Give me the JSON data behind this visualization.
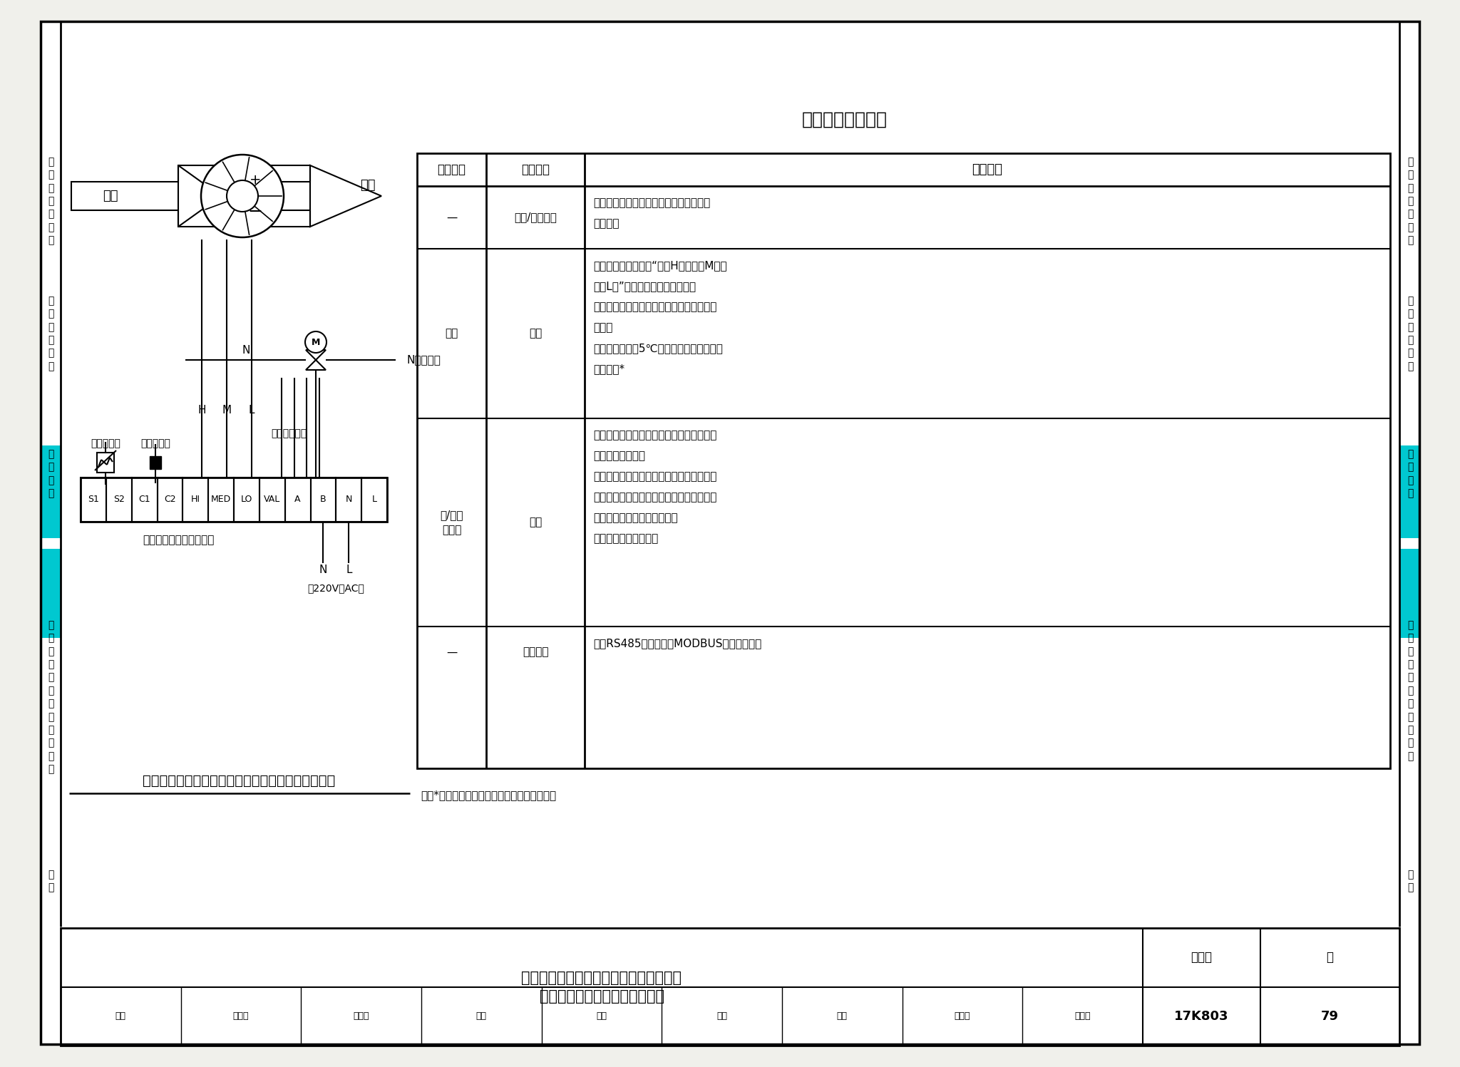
{
  "bg_color": "#f0f0eb",
  "page_bg": "#ffffff",
  "cyan_color": "#00c8d0",
  "title_right": "自控调节策略说明",
  "diagram_title": "冷热型联网（二管制）风机盘管温控面板接线示意图",
  "table_headers": [
    "被控设备",
    "被控内容",
    "控制要求"
  ],
  "row0_device": "—",
  "row0_content": "供冷/供热模式",
  "row0_req": [
    "接受人员的选择；供冷、供热、通风模式",
    "自动选择"
  ],
  "row1_device": "风机",
  "row1_content": "启停",
  "row1_req": [
    "根据人员的选择，按“高（H）、中（M）、",
    "低（L）”三档风速调节风机转速；",
    "或根据室内温度实测値与设定値的偏差自动",
    "换档；",
    "当室内温度低于5℃时，自动启动风机执行",
    "値班采暖*"
  ],
  "row2_device": "冷/热水\n电动阀",
  "row2_content": "通断",
  "row2_req": [
    "根据室内温度的实测値与设定値的偏差，对",
    "电动阀进行控制；",
    "供冷模式时，当室内温度实测値高于设定値",
    "时，电动阀开启；当室内温度实测値达到或",
    "低于设定値时，电动阀关闭；",
    "供热模式时，动作相反"
  ],
  "row3_device": "—",
  "row3_content": "联网功能",
  "row3_req": [
    "具有RS485联网控制（MODBUS等标准协议）"
  ],
  "note": "注：*部分产品有此功能，可以通过设置实现。",
  "footer_main_line1": "冷热型联网（二管制）风机盘管温控面板",
  "footer_main_line2": "接线示意图及自控调节策略说明",
  "footer_atlas_label": "图集号",
  "footer_atlas_num": "17K803",
  "footer_page_label": "页",
  "footer_page_num": "79",
  "audit_row": [
    "审核",
    "金久析",
    "合文易",
    "校对",
    "余欣",
    "合校",
    "设计",
    "赵晓字",
    "赵呼字"
  ],
  "left_sidebar": [
    {
      "目录与编制说明": 215
    },
    {
      "通用监控要求": 415
    },
    {
      "自控原理": 615
    },
    {
      "仪表调试选用和运与行安装": 830
    },
    {
      "附录": 1210
    }
  ],
  "right_sidebar": [
    {
      "目录与编制说明": 215
    },
    {
      "通用监控要求": 415
    },
    {
      "自控原理": 615
    },
    {
      "仪表调试选用和运行安装": 830
    },
    {
      "附录": 1210
    }
  ],
  "terminal_labels": [
    "S1",
    "S2",
    "C1",
    "C2",
    "HI",
    "MED",
    "LO",
    "VAL",
    "A",
    "B",
    "N",
    "L"
  ],
  "huifeng_label": "回风",
  "songfeng_label": "送风",
  "sensor_label": "外接传感器",
  "drycontact_label": "干接点输入",
  "netport_label": "网络通讯接口",
  "fcuboard_label": "联网型风机盘管温控面板",
  "power_label": "（220V，AC）",
  "neutral_label": "N（零线）",
  "neutral_n": "N"
}
